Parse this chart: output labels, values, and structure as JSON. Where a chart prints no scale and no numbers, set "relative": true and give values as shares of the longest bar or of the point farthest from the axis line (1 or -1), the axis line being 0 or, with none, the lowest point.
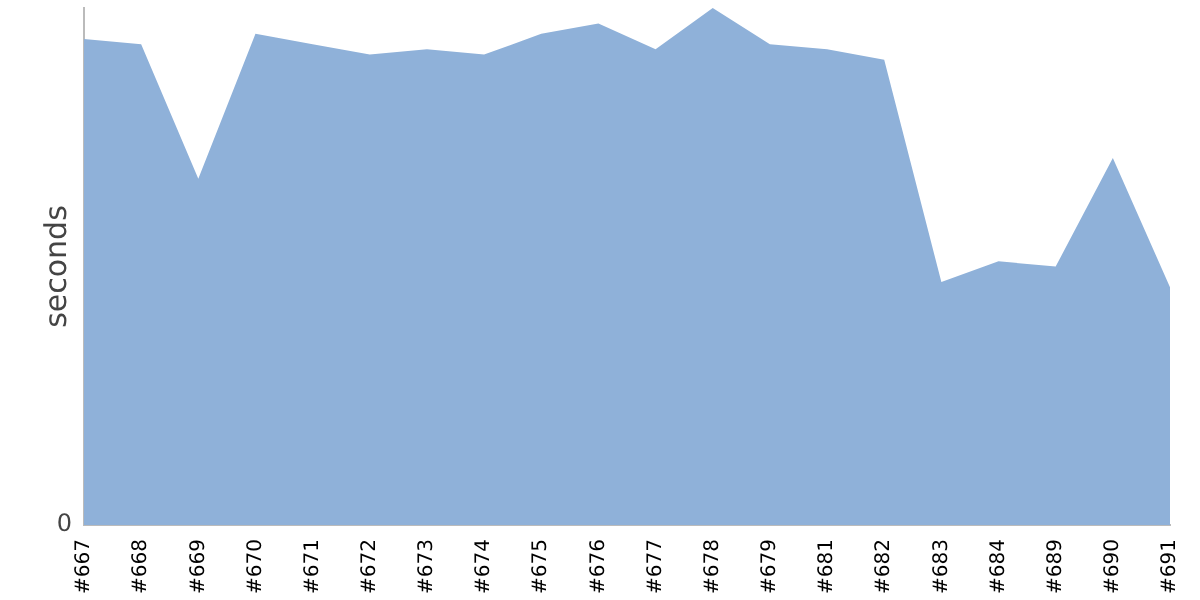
{
  "chart_data": {
    "type": "area",
    "ylabel": "seconds",
    "relative": true,
    "annotations": [
      "0"
    ],
    "categories": [
      "#667",
      "#668",
      "#669",
      "#670",
      "#671",
      "#672",
      "#673",
      "#674",
      "#675",
      "#676",
      "#677",
      "#678",
      "#679",
      "#681",
      "#682",
      "#683",
      "#684",
      "#689",
      "#690",
      "#691"
    ],
    "series": [
      {
        "color": "#8fb1d9",
        "values": [
          0.94,
          0.93,
          0.67,
          0.95,
          0.93,
          0.91,
          0.92,
          0.91,
          0.95,
          0.97,
          0.92,
          1,
          0.93,
          0.92,
          0.9,
          0.47,
          0.51,
          0.5,
          0.71,
          0.46
        ]
      }
    ],
    "grid": false,
    "legend": false
  }
}
